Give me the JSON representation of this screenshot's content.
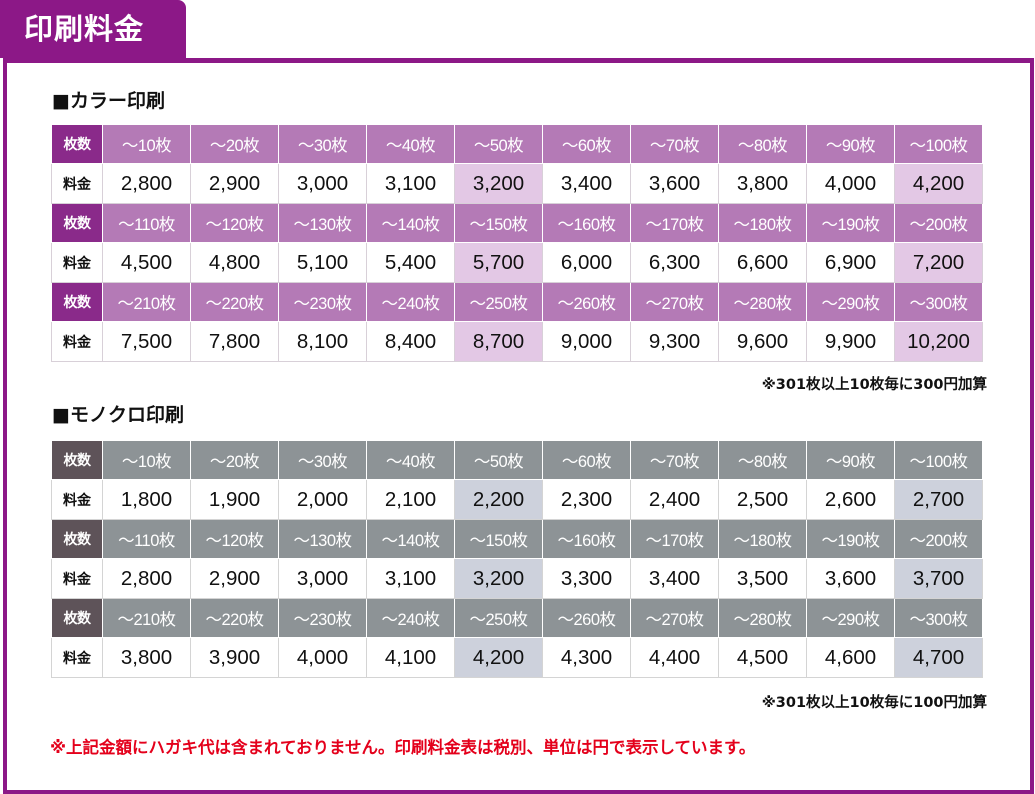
{
  "page_title": "印刷料金",
  "colors": {
    "brand": "#8c1887",
    "color_header": "#b47ab6",
    "color_header_label": "#8a2a8a",
    "color_highlight": "#e3c8e5",
    "mono_header": "#8d9396",
    "mono_header_label": "#5e5359",
    "mono_highlight": "#cdd1dc",
    "warning": "#e4001b"
  },
  "color_section": {
    "heading": "■カラー印刷",
    "qty_label": "枚数",
    "price_label": "料金",
    "groups": [
      {
        "quantities": [
          "～10枚",
          "～20枚",
          "～30枚",
          "～40枚",
          "～50枚",
          "～60枚",
          "～70枚",
          "～80枚",
          "～90枚",
          "～100枚"
        ],
        "prices": [
          "2,800",
          "2,900",
          "3,000",
          "3,100",
          "3,200",
          "3,400",
          "3,600",
          "3,800",
          "4,000",
          "4,200"
        ]
      },
      {
        "quantities": [
          "～110枚",
          "～120枚",
          "～130枚",
          "～140枚",
          "～150枚",
          "～160枚",
          "～170枚",
          "～180枚",
          "～190枚",
          "～200枚"
        ],
        "prices": [
          "4,500",
          "4,800",
          "5,100",
          "5,400",
          "5,700",
          "6,000",
          "6,300",
          "6,600",
          "6,900",
          "7,200"
        ]
      },
      {
        "quantities": [
          "～210枚",
          "～220枚",
          "～230枚",
          "～240枚",
          "～250枚",
          "～260枚",
          "～270枚",
          "～280枚",
          "～290枚",
          "～300枚"
        ],
        "prices": [
          "7,500",
          "7,800",
          "8,100",
          "8,400",
          "8,700",
          "9,000",
          "9,300",
          "9,600",
          "9,900",
          "10,200"
        ]
      }
    ],
    "note": "※301枚以上10枚毎に300円加算"
  },
  "mono_section": {
    "heading": "■モノクロ印刷",
    "qty_label": "枚数",
    "price_label": "料金",
    "groups": [
      {
        "quantities": [
          "～10枚",
          "～20枚",
          "～30枚",
          "～40枚",
          "～50枚",
          "～60枚",
          "～70枚",
          "～80枚",
          "～90枚",
          "～100枚"
        ],
        "prices": [
          "1,800",
          "1,900",
          "2,000",
          "2,100",
          "2,200",
          "2,300",
          "2,400",
          "2,500",
          "2,600",
          "2,700"
        ]
      },
      {
        "quantities": [
          "～110枚",
          "～120枚",
          "～130枚",
          "～140枚",
          "～150枚",
          "～160枚",
          "～170枚",
          "～180枚",
          "～190枚",
          "～200枚"
        ],
        "prices": [
          "2,800",
          "2,900",
          "3,000",
          "3,100",
          "3,200",
          "3,300",
          "3,400",
          "3,500",
          "3,600",
          "3,700"
        ]
      },
      {
        "quantities": [
          "～210枚",
          "～220枚",
          "～230枚",
          "～240枚",
          "～250枚",
          "～260枚",
          "～270枚",
          "～280枚",
          "～290枚",
          "～300枚"
        ],
        "prices": [
          "3,800",
          "3,900",
          "4,000",
          "4,100",
          "4,200",
          "4,300",
          "4,400",
          "4,500",
          "4,600",
          "4,700"
        ]
      }
    ],
    "note": "※301枚以上10枚毎に100円加算"
  },
  "disclaimer": "※上記金額にハガキ代は含まれておりません。印刷料金表は税別、単位は円で表示しています。"
}
